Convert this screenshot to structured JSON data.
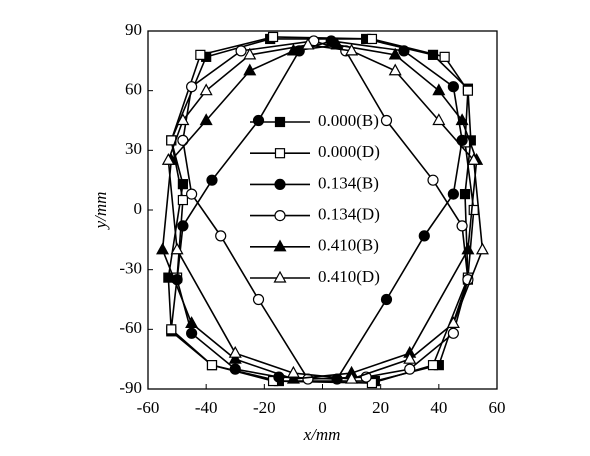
{
  "chart_data": {
    "type": "line",
    "xlabel": "x/mm",
    "ylabel": "y/mm",
    "xlim": [
      -60,
      60
    ],
    "xticks": [
      -60,
      -40,
      -20,
      0,
      20,
      40,
      60
    ],
    "ylim": [
      -90,
      90
    ],
    "yticks": [
      -90,
      -60,
      -30,
      0,
      30,
      60,
      90
    ],
    "closed": true,
    "series": [
      {
        "name": "0.000(B)",
        "color": "#000000",
        "marker": "square",
        "filled": true,
        "x": [
          -18,
          15,
          38,
          50,
          51,
          49,
          50,
          40,
          18,
          -15,
          -38,
          -52,
          -53,
          -48,
          -52,
          -40
        ],
        "y": [
          86,
          86,
          78,
          61,
          35,
          8,
          -35,
          -78,
          -86,
          -86,
          -78,
          -61,
          -34,
          13,
          35,
          77
        ]
      },
      {
        "name": "0.000(D)",
        "color": "#000000",
        "marker": "square",
        "filled": false,
        "x": [
          -17,
          17,
          42,
          50,
          49,
          52,
          50,
          38,
          17,
          -17,
          -38,
          -52,
          -50,
          -48,
          -52,
          -42
        ],
        "y": [
          87,
          86,
          77,
          60,
          34,
          0,
          -34,
          -78,
          -87,
          -86,
          -78,
          -60,
          -34,
          5,
          35,
          78
        ]
      },
      {
        "name": "0.134(B)",
        "color": "#000000",
        "marker": "circle",
        "filled": true,
        "x": [
          3,
          28,
          45,
          48,
          45,
          35,
          22,
          5,
          -15,
          -30,
          -45,
          -50,
          -48,
          -38,
          -22,
          -8
        ],
        "y": [
          85,
          80,
          62,
          35,
          8,
          -13,
          -45,
          -85,
          -84,
          -80,
          -62,
          -35,
          -8,
          15,
          45,
          80
        ]
      },
      {
        "name": "0.134(D)",
        "color": "#000000",
        "marker": "circle",
        "filled": false,
        "x": [
          -3,
          -28,
          -45,
          -48,
          -45,
          -35,
          -22,
          -5,
          15,
          30,
          45,
          50,
          48,
          38,
          22,
          8
        ],
        "y": [
          85,
          80,
          62,
          35,
          8,
          -13,
          -45,
          -85,
          -84,
          -80,
          -62,
          -35,
          -8,
          15,
          45,
          80
        ]
      },
      {
        "name": "0.410(B)",
        "color": "#000000",
        "marker": "triangle",
        "filled": true,
        "x": [
          5,
          25,
          40,
          48,
          53,
          50,
          30,
          10,
          -10,
          -30,
          -45,
          -55,
          -52,
          -40,
          -25,
          -10
        ],
        "y": [
          83,
          78,
          60,
          45,
          25,
          -20,
          -72,
          -82,
          -85,
          -75,
          -57,
          -20,
          25,
          45,
          70,
          80
        ]
      },
      {
        "name": "0.410(D)",
        "color": "#000000",
        "marker": "triangle",
        "filled": false,
        "x": [
          -5,
          -25,
          -40,
          -48,
          -53,
          -50,
          -30,
          -10,
          10,
          30,
          45,
          55,
          52,
          40,
          25,
          10
        ],
        "y": [
          83,
          78,
          60,
          45,
          25,
          -20,
          -72,
          -82,
          -85,
          -75,
          -57,
          -20,
          25,
          45,
          70,
          80
        ]
      }
    ]
  }
}
